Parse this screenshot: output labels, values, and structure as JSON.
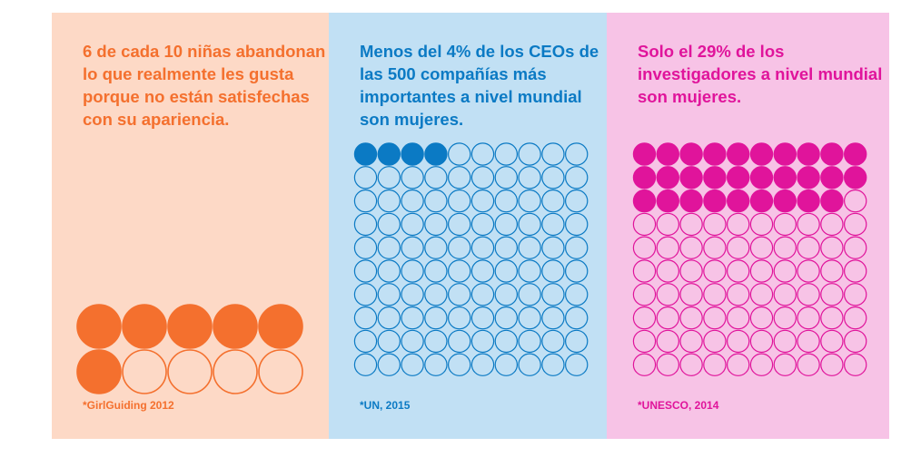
{
  "panels": [
    {
      "title": "6 de cada 10 niñas abandonan lo que realmente les gusta porque no están satisfechas con su apariencia.",
      "source": "*GirlGuiding 2012",
      "background": "#fdd9c6",
      "accent": "#f4702e",
      "total": 10,
      "filled": 6,
      "columns": 5
    },
    {
      "title": "Menos del 4% de los CEOs de las 500 compañías más importantes a nivel mundial son mujeres.",
      "source": "*UN, 2015",
      "background": "#c1e0f4",
      "accent": "#0b7ac4",
      "total": 100,
      "filled": 4,
      "columns": 10
    },
    {
      "title": "Solo el 29% de los investigadores a nivel mundial son mujeres.",
      "source": "*UNESCO, 2014",
      "background": "#f7c3e6",
      "accent": "#e0149b",
      "total": 100,
      "filled": 29,
      "columns": 10
    }
  ]
}
